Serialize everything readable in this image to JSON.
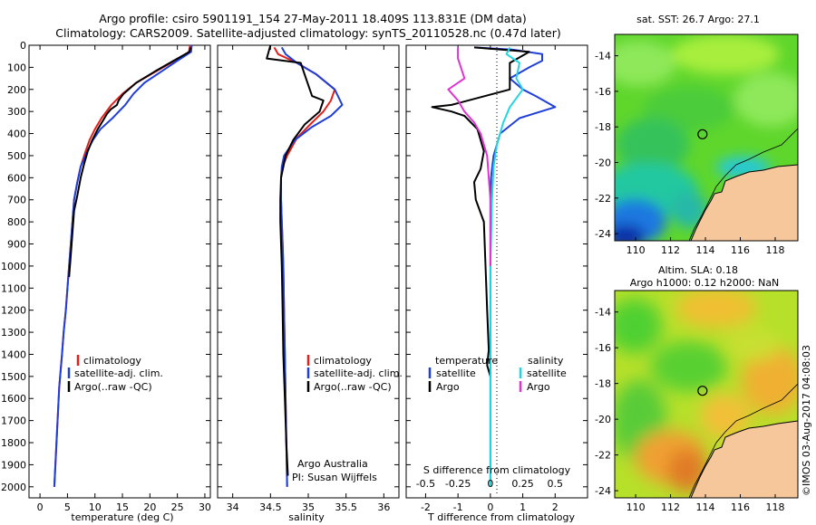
{
  "title": {
    "line1": "Argo profile: csiro 5901191_154 27-May-2011 18.409S 113.831E (DM data)",
    "line2": "Climatology: CARS2009. Satellite-adjusted climatology: synTS_20110528.nc (0.47d later)"
  },
  "colors": {
    "climatology": "#e0201b",
    "satellite": "#1f3fd8",
    "argo": "#000000",
    "sal_satellite": "#22d6e0",
    "sal_argo": "#e033d4",
    "land": "#f7c79c"
  },
  "chart_data": [
    {
      "type": "line",
      "name": "temperature-profile",
      "xlabel": "temperature (deg C)",
      "ylabel": "",
      "xlim": [
        -2,
        31
      ],
      "ylim": [
        2050,
        0
      ],
      "xticks": [
        0,
        5,
        10,
        15,
        20,
        25,
        30
      ],
      "yticks": [
        0,
        100,
        200,
        300,
        400,
        500,
        600,
        700,
        800,
        900,
        1000,
        1100,
        1200,
        1300,
        1400,
        1500,
        1600,
        1700,
        1800,
        1900,
        2000
      ],
      "legend": [
        "climatology",
        "satellite-adj. clim.",
        "Argo(..raw -QC)"
      ],
      "series": [
        {
          "name": "climatology",
          "x": [
            27.3,
            27.1,
            24.5,
            21,
            17.5,
            15,
            13,
            11.2,
            10,
            9,
            8.3,
            7.4,
            6.8,
            6.2,
            5.9,
            5.6,
            5.3,
            5,
            4.7,
            4.3,
            4,
            3.5,
            3.2,
            2.9,
            2.6
          ],
          "y": [
            0,
            30,
            70,
            120,
            170,
            220,
            270,
            330,
            380,
            430,
            480,
            550,
            620,
            700,
            800,
            900,
            1000,
            1100,
            1200,
            1300,
            1400,
            1550,
            1700,
            1850,
            2000
          ]
        },
        {
          "name": "satellite-adj. clim.",
          "x": [
            27.6,
            27.5,
            25,
            22,
            19,
            17,
            15.5,
            13.2,
            11,
            9.6,
            8.6,
            7.4,
            6.8,
            6.2,
            5.9,
            5.6,
            5.3,
            5,
            4.7,
            4.3,
            4,
            3.5,
            3.2,
            2.9,
            2.6
          ],
          "y": [
            0,
            30,
            70,
            120,
            170,
            220,
            270,
            330,
            380,
            430,
            480,
            550,
            620,
            700,
            800,
            900,
            1000,
            1100,
            1200,
            1300,
            1400,
            1550,
            1700,
            1850,
            2000
          ]
        },
        {
          "name": "Argo(..raw -QC)",
          "x": [
            27.4,
            27.2,
            24.3,
            20.8,
            17.5,
            15.2,
            14.3,
            14,
            12.9,
            12.2,
            11.5,
            10.5,
            9.5,
            8.7,
            8,
            7.4,
            6.8,
            6.2,
            5.9,
            5.6,
            5.3
          ],
          "y": [
            10,
            30,
            70,
            120,
            170,
            220,
            250,
            270,
            290,
            310,
            340,
            380,
            430,
            480,
            540,
            600,
            680,
            750,
            850,
            950,
            1050
          ]
        }
      ]
    },
    {
      "type": "line",
      "name": "salinity-profile",
      "xlabel": "salinity",
      "ylabel": "",
      "xlim": [
        33.8,
        36.2
      ],
      "ylim": [
        2050,
        0
      ],
      "xticks": [
        34,
        34.5,
        35,
        35.5,
        36
      ],
      "legend": [
        "climatology",
        "satellite-adj. clim.",
        "Argo(..raw -QC)"
      ],
      "annotations": [
        "Argo Australia",
        "PI: Susan Wijffels"
      ],
      "series": [
        {
          "name": "climatology",
          "x": [
            34.55,
            34.6,
            34.85,
            35.1,
            35.35,
            35.3,
            35.2,
            35.05,
            34.85,
            34.72,
            34.66,
            34.64,
            34.64,
            34.65,
            34.66,
            34.67,
            34.68,
            34.69,
            34.7,
            34.71,
            34.72
          ],
          "y": [
            10,
            40,
            80,
            130,
            200,
            250,
            300,
            350,
            420,
            500,
            550,
            600,
            700,
            800,
            900,
            1000,
            1200,
            1400,
            1600,
            1800,
            2000
          ]
        },
        {
          "name": "satellite-adj. clim.",
          "x": [
            34.65,
            34.7,
            34.85,
            35.1,
            35.35,
            35.45,
            35.3,
            35.05,
            34.82,
            34.68,
            34.65,
            34.64,
            34.64,
            34.65,
            34.66,
            34.67,
            34.68,
            34.69,
            34.7,
            34.71,
            34.72
          ],
          "y": [
            10,
            40,
            80,
            130,
            200,
            270,
            320,
            370,
            430,
            500,
            550,
            600,
            700,
            800,
            900,
            1000,
            1200,
            1400,
            1600,
            1800,
            2000
          ]
        },
        {
          "name": "Argo(..raw -QC)",
          "x": [
            34.5,
            34.45,
            34.9,
            34.95,
            35,
            35.05,
            35.2,
            35.15,
            34.95,
            34.8,
            34.7,
            34.64,
            34.63,
            34.63,
            34.64,
            34.65,
            34.66,
            34.67,
            34.69,
            34.71,
            34.73
          ],
          "y": [
            0,
            60,
            80,
            130,
            180,
            230,
            250,
            300,
            360,
            430,
            500,
            600,
            700,
            800,
            900,
            1000,
            1200,
            1400,
            1600,
            1800,
            1950
          ]
        }
      ]
    },
    {
      "type": "line",
      "name": "difference-from-climatology",
      "xlabel": "T difference from climatology",
      "xlabel2": "S difference from climatology",
      "xlim": [
        -2.6,
        3
      ],
      "ylim": [
        2050,
        0
      ],
      "xticks": [
        -2,
        -1,
        0,
        1,
        2
      ],
      "xticks2": [
        "-0.5",
        "-0.25",
        "0",
        "0.25",
        "0.5"
      ],
      "legend_t_header": "temperature",
      "legend_s_header": "salinity",
      "legend_labels": [
        "satellite",
        "Argo",
        "satellite",
        "Argo"
      ],
      "series": [
        {
          "name": "T satellite",
          "x": [
            -0.5,
            0.7,
            1.6,
            1.6,
            1.2,
            0.6,
            1.0,
            1.4,
            2.0,
            0.9,
            0.3,
            0.1,
            0.05,
            0.02,
            0,
            0,
            0,
            0,
            0,
            0,
            0
          ],
          "y": [
            10,
            20,
            40,
            70,
            100,
            150,
            200,
            230,
            280,
            330,
            400,
            500,
            560,
            600,
            700,
            800,
            1000,
            1200,
            1400,
            1600,
            2000
          ]
        },
        {
          "name": "T Argo",
          "x": [
            -0.5,
            1.2,
            0.6,
            0.6,
            -1.2,
            -1.8,
            -1.2,
            -0.8,
            -0.4,
            -0.2,
            -0.3,
            -0.5,
            -0.45,
            -0.2,
            -0.15,
            -0.1,
            -0.05,
            -0.1,
            0
          ],
          "y": [
            10,
            30,
            80,
            200,
            270,
            280,
            300,
            320,
            380,
            480,
            560,
            620,
            700,
            800,
            1000,
            1200,
            1380,
            1450,
            1500
          ]
        },
        {
          "name": "S satellite",
          "x": [
            0.6,
            0.5,
            0.9,
            0.8,
            1.0,
            0.6,
            0.4,
            0.2,
            0.1,
            0.05,
            0,
            0,
            0
          ],
          "y": [
            10,
            40,
            80,
            150,
            200,
            280,
            350,
            450,
            550,
            700,
            1000,
            1500,
            2000
          ]
        },
        {
          "name": "S Argo",
          "x": [
            -1.0,
            -1.0,
            -0.8,
            -1.3,
            -1.0,
            -0.8,
            -0.5,
            -0.3,
            -0.1,
            0,
            0
          ],
          "y": [
            10,
            60,
            150,
            200,
            250,
            300,
            350,
            400,
            500,
            700,
            1000
          ]
        }
      ]
    },
    {
      "type": "heatmap",
      "name": "sst-map",
      "title": "sat. SST: 26.7  Argo: 27.1",
      "xlim": [
        108.8,
        119.3
      ],
      "ylim": [
        -24.4,
        -12.8
      ],
      "xticks": [
        110,
        112,
        114,
        116,
        118
      ],
      "yticks": [
        -14,
        -16,
        -18,
        -20,
        -22,
        -24
      ],
      "profile_location": [
        113.83,
        -18.41
      ]
    },
    {
      "type": "heatmap",
      "name": "sla-map",
      "title": "Altim. SLA: 0.18",
      "subtitle": "Argo h1000: 0.12 h2000: NaN",
      "xlim": [
        108.8,
        119.3
      ],
      "ylim": [
        -24.4,
        -12.8
      ],
      "xticks": [
        110,
        112,
        114,
        116,
        118
      ],
      "yticks": [
        -14,
        -16,
        -18,
        -20,
        -22,
        -24
      ],
      "profile_location": [
        113.83,
        -18.41
      ]
    }
  ],
  "credit": "©IMOS 03-Aug-2017 04:08:03"
}
